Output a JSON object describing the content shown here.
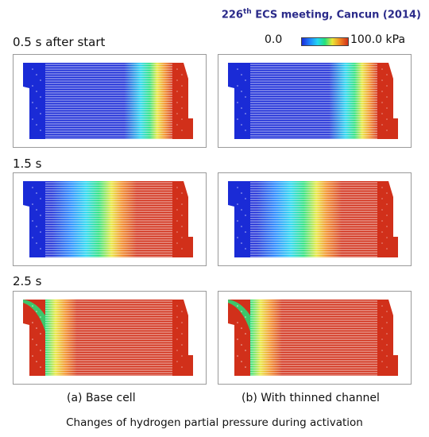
{
  "header": {
    "conference_number": "226",
    "conference_suffix": "th",
    "conference_rest": " ECS meeting, Cancun (2014)"
  },
  "rows": [
    {
      "label": "0.5 s after start"
    },
    {
      "label": "1.5 s"
    },
    {
      "label": "2.5 s"
    }
  ],
  "scale": {
    "min": "0.0",
    "max": "100.0 kPa"
  },
  "columns": [
    {
      "caption": "(a) Base cell"
    },
    {
      "caption": "(b) With thinned channel"
    }
  ],
  "footer": {
    "caption": "Changes of hydrogen partial pressure during activation"
  },
  "colors": {
    "low": "#1a2bd6",
    "mid": "#23e07a",
    "high": "#d1301a"
  }
}
